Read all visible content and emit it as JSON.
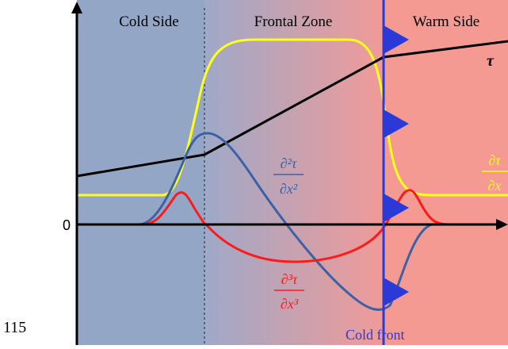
{
  "page_number": "115",
  "regions": {
    "cold": {
      "label": "Cold Side",
      "color": "#94a6c6"
    },
    "frontal": {
      "label": "Frontal Zone",
      "color_start": "#9ea9c8",
      "color_end": "#f19a98"
    },
    "warm": {
      "label": "Warm Side",
      "color": "#f49a92"
    }
  },
  "axis": {
    "zero_label": "0"
  },
  "front": {
    "label": "Cold front",
    "color": "#2b3ad6"
  },
  "curves": {
    "tau": {
      "label": "τ",
      "color": "#000000"
    },
    "d1": {
      "label_num": "∂τ",
      "label_den": "∂x",
      "color": "#ffff1a"
    },
    "d2": {
      "label_num": "∂²τ",
      "label_den": "∂x²",
      "color": "#3b62a4"
    },
    "d3": {
      "label_num": "∂³τ",
      "label_den": "∂x³",
      "color": "#ff1a1a"
    }
  }
}
